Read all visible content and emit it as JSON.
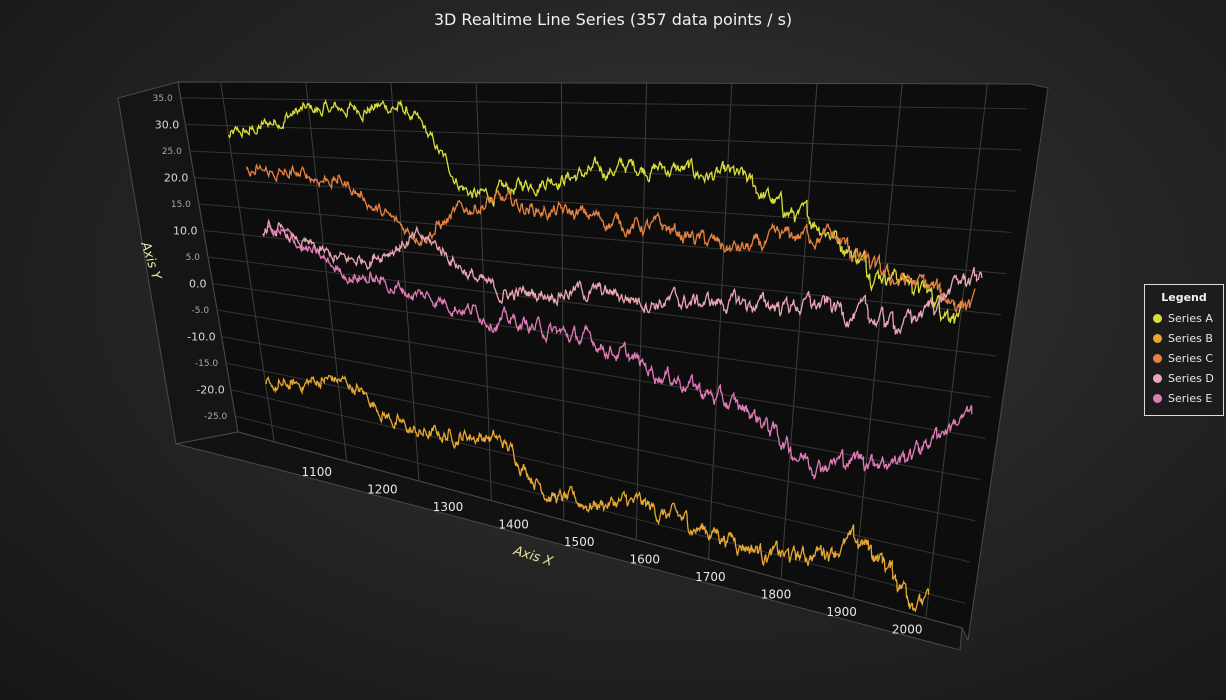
{
  "chart_data": {
    "type": "line",
    "title": "3D Realtime Line Series (357 data points / s)",
    "xlabel": "Axis X",
    "ylabel": "Axis Y",
    "xlim": [
      1050,
      2050
    ],
    "ylim": [
      -28,
      38
    ],
    "x_ticks": [
      "1100",
      "1200",
      "1300",
      "1400",
      "1500",
      "1600",
      "1700",
      "1800",
      "1900",
      "2000"
    ],
    "y_ticks_major": [
      "30.0",
      "20.0",
      "10.0",
      "0.0",
      "-10.0",
      "-20.0"
    ],
    "y_ticks_minor": [
      "35.0",
      "25.0",
      "15.0",
      "5.0",
      "-5.0",
      "-15.0",
      "-25.0"
    ],
    "legend": {
      "title": "Legend",
      "position": "right"
    },
    "series": [
      {
        "name": "Series A",
        "color": "#d8de3a",
        "x": [
          1100,
          1200,
          1300,
          1400,
          1500,
          1600,
          1700,
          1800,
          1900,
          2000
        ],
        "values": [
          28,
          33,
          34,
          20,
          24,
          26,
          25,
          20,
          14,
          10
        ]
      },
      {
        "name": "Series B",
        "color": "#e6a832",
        "x": [
          1100,
          1200,
          1300,
          1400,
          1500,
          1600,
          1700,
          1800,
          1900,
          2000
        ],
        "values": [
          -18,
          -14,
          -20,
          -18,
          -25,
          -23,
          -24,
          -25,
          -21,
          -26
        ]
      },
      {
        "name": "Series C",
        "color": "#e58242",
        "x": [
          1100,
          1200,
          1300,
          1400,
          1500,
          1600,
          1700,
          1800,
          1900,
          2000
        ],
        "values": [
          20,
          20,
          12,
          18,
          17,
          16,
          14,
          17,
          12,
          10
        ]
      },
      {
        "name": "Series D",
        "color": "#eaa6b4",
        "x": [
          1100,
          1200,
          1300,
          1400,
          1500,
          1600,
          1700,
          1800,
          1900,
          2000
        ],
        "values": [
          9,
          5,
          10,
          3,
          5,
          5,
          6,
          7,
          6,
          13
        ]
      },
      {
        "name": "Series E",
        "color": "#e07ab6",
        "x": [
          1100,
          1200,
          1300,
          1400,
          1500,
          1600,
          1700,
          1800,
          1900,
          2000
        ],
        "values": [
          8,
          2,
          0,
          -2,
          -3,
          -6,
          -9,
          -14,
          -12,
          -5
        ]
      }
    ]
  }
}
